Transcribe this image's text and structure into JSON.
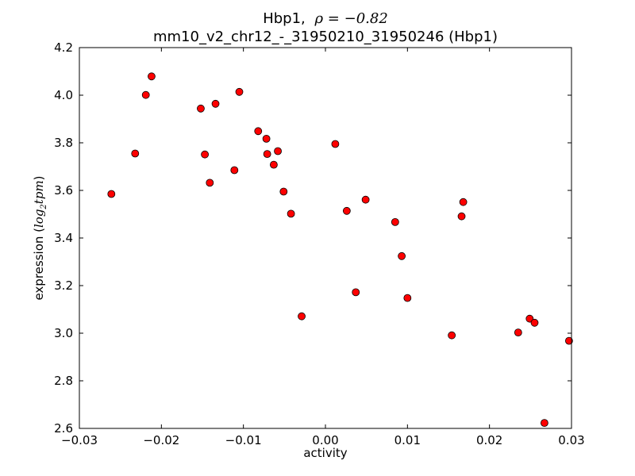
{
  "chart_data": {
    "type": "scatter",
    "title_gene": "Hbp1,",
    "title_rho": "ρ = −0.82",
    "subtitle": "mm10_v2_chr12_-_31950210_31950246 (Hbp1)",
    "xlabel": "activity",
    "ylabel_prefix": "expression (",
    "ylabel_math_base": "log",
    "ylabel_math_sub": "2",
    "ylabel_math_rest": "tpm",
    "ylabel_suffix": ")",
    "xlim": [
      -0.03,
      0.03
    ],
    "ylim": [
      2.6,
      4.2
    ],
    "x_ticks": [
      -0.03,
      -0.02,
      -0.01,
      0.0,
      0.01,
      0.02,
      0.03
    ],
    "x_tick_labels": [
      "−0.03",
      "−0.02",
      "−0.01",
      "0.00",
      "0.01",
      "0.02",
      "0.03"
    ],
    "y_ticks": [
      2.6,
      2.8,
      3.0,
      3.2,
      3.4,
      3.6,
      3.8,
      4.0,
      4.2
    ],
    "y_tick_labels": [
      "2.6",
      "2.8",
      "3.0",
      "3.2",
      "3.4",
      "3.6",
      "3.8",
      "4.0",
      "4.2"
    ],
    "grid": false,
    "marker_color": "#ff0000",
    "marker_edge": "#000000",
    "points": [
      {
        "x": -0.0261,
        "y": 3.585
      },
      {
        "x": -0.0232,
        "y": 3.755
      },
      {
        "x": -0.0219,
        "y": 4.001
      },
      {
        "x": -0.0212,
        "y": 4.079
      },
      {
        "x": -0.0152,
        "y": 3.944
      },
      {
        "x": -0.0147,
        "y": 3.751
      },
      {
        "x": -0.0141,
        "y": 3.632
      },
      {
        "x": -0.0134,
        "y": 3.964
      },
      {
        "x": -0.0111,
        "y": 3.685
      },
      {
        "x": -0.0105,
        "y": 4.014
      },
      {
        "x": -0.0082,
        "y": 3.849
      },
      {
        "x": -0.0072,
        "y": 3.817
      },
      {
        "x": -0.0071,
        "y": 3.753
      },
      {
        "x": -0.0063,
        "y": 3.708
      },
      {
        "x": -0.0058,
        "y": 3.765
      },
      {
        "x": -0.0051,
        "y": 3.595
      },
      {
        "x": -0.0042,
        "y": 3.502
      },
      {
        "x": -0.0029,
        "y": 3.071
      },
      {
        "x": 0.0012,
        "y": 3.795
      },
      {
        "x": 0.0026,
        "y": 3.514
      },
      {
        "x": 0.0037,
        "y": 3.172
      },
      {
        "x": 0.0049,
        "y": 3.561
      },
      {
        "x": 0.0085,
        "y": 3.467
      },
      {
        "x": 0.0093,
        "y": 3.324
      },
      {
        "x": 0.01,
        "y": 3.148
      },
      {
        "x": 0.0154,
        "y": 2.991
      },
      {
        "x": 0.0166,
        "y": 3.491
      },
      {
        "x": 0.0168,
        "y": 3.551
      },
      {
        "x": 0.0235,
        "y": 3.003
      },
      {
        "x": 0.0249,
        "y": 3.061
      },
      {
        "x": 0.0255,
        "y": 3.044
      },
      {
        "x": 0.0267,
        "y": 2.623
      },
      {
        "x": 0.0297,
        "y": 2.968
      }
    ]
  }
}
